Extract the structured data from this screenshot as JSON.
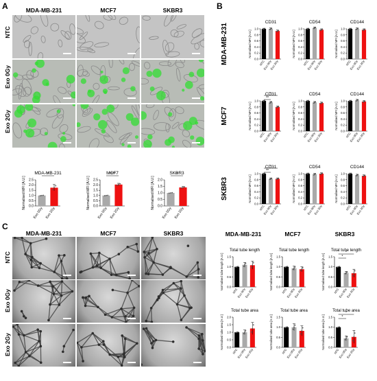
{
  "panels": {
    "a": "A",
    "b": "B",
    "c": "C"
  },
  "colors": {
    "ntc": "#000000",
    "exo0": "#a9a9a9",
    "exo2": "#ee1111",
    "green": "#33dd33"
  },
  "panelA": {
    "columns": [
      "MDA-MB-231",
      "MCF7",
      "SKBR3"
    ],
    "rows": [
      "NTC",
      "Exo 0Gy",
      "Exo 2Gy"
    ],
    "charts": [
      {
        "title": "MDA-MB-231",
        "ylabel": "Normalised MFI [A.U.]",
        "yticks": [
          "0.0",
          "0.5",
          "1.0",
          "1.5",
          "2.0",
          "2.5"
        ],
        "ymax": 2.5,
        "categories": [
          "Exo 0Gy",
          "Exo 2Gy"
        ],
        "values": [
          1.0,
          1.75
        ],
        "err": [
          0,
          0.3
        ],
        "sig": "*"
      },
      {
        "title": "MCF7",
        "ylabel": "Normalised MFI [A.U.]",
        "yticks": [
          "0.0",
          "0.5",
          "1.0",
          "1.5",
          "2.0",
          "2.5"
        ],
        "ymax": 2.5,
        "categories": [
          "Exo 0Gy",
          "Exo 2Gy"
        ],
        "values": [
          1.0,
          2.05
        ],
        "err": [
          0,
          0.12
        ],
        "sig": "****"
      },
      {
        "title": "SKBR3",
        "ylabel": "Normalised MFI [A.U.]",
        "yticks": [
          "0.0",
          "0.5",
          "1.0",
          "1.5",
          "2.0"
        ],
        "ymax": 2.0,
        "categories": [
          "Exo 0Gy",
          "Exo 2Gy"
        ],
        "values": [
          1.0,
          1.42
        ],
        "err": [
          0,
          0.07
        ],
        "sig": "**"
      }
    ]
  },
  "panelB": {
    "rows": [
      "MDA-MB-231",
      "MCF7",
      "SKBR3"
    ],
    "markers": [
      "CD31",
      "CD54",
      "CD144"
    ],
    "ylabel": "Normalised MFI [A.U.]",
    "yticks": [
      "0.0",
      "0.2",
      "0.4",
      "0.6",
      "0.8",
      "1.0"
    ],
    "categories": [
      "NTC",
      "Exo 0Gy",
      "Exo 2Gy"
    ],
    "values": [
      [
        [
          1.0,
          1.0,
          0.93
        ],
        [
          1.0,
          1.03,
          0.97
        ],
        [
          1.0,
          1.0,
          0.97
        ]
      ],
      [
        [
          1.0,
          0.95,
          0.8
        ],
        [
          1.0,
          0.95,
          0.93
        ],
        [
          1.0,
          1.02,
          0.98
        ]
      ],
      [
        [
          1.0,
          0.83,
          0.83
        ],
        [
          1.0,
          0.98,
          1.0
        ],
        [
          1.0,
          0.95,
          0.93
        ]
      ]
    ],
    "sig": [
      [
        [],
        [],
        []
      ],
      [
        [
          "**",
          "*"
        ],
        [],
        []
      ],
      [
        [
          "**",
          "*"
        ],
        [],
        []
      ]
    ]
  },
  "panelC": {
    "columns": [
      "MDA-MB-231",
      "MCF7",
      "SKBR3"
    ],
    "rows": [
      "NTC",
      "Exo 0Gy",
      "Exo 2Gy"
    ],
    "chartCols": [
      "MDA-MB-231",
      "MCF7",
      "SKBR3"
    ],
    "charts": [
      [
        {
          "title": "Total tube length",
          "ylabel": "Normalised tube length [A.U.]",
          "yticks": [
            "0.0",
            "0.5",
            "1.0",
            "1.5"
          ],
          "ymax": 1.5,
          "values": [
            1.0,
            1.1,
            1.08
          ],
          "err": [
            0,
            0.12,
            0.2
          ],
          "sig": []
        },
        {
          "title": "Total tube length",
          "ylabel": "Normalised tube length [A.U.]",
          "yticks": [
            "0.0",
            "0.5",
            "1.0",
            "1.5"
          ],
          "ymax": 1.5,
          "values": [
            1.0,
            0.93,
            0.88
          ],
          "err": [
            0,
            0.1,
            0.12
          ],
          "sig": []
        },
        {
          "title": "Total tube length",
          "ylabel": "Normalised tube length [A.U.]",
          "yticks": [
            "0.0",
            "0.5",
            "1.0",
            "1.5"
          ],
          "ymax": 1.5,
          "values": [
            1.0,
            0.7,
            0.68
          ],
          "err": [
            0,
            0.07,
            0.2
          ],
          "sig": [
            "*",
            "*"
          ]
        }
      ],
      [
        {
          "title": "Total tube area",
          "ylabel": "Normalised tube area [A.U.]",
          "yticks": [
            "0.0",
            "0.5",
            "1.0",
            "1.5",
            "2.0"
          ],
          "ymax": 2.0,
          "values": [
            1.0,
            1.0,
            1.25
          ],
          "err": [
            0,
            0.15,
            0.4
          ],
          "sig": []
        },
        {
          "title": "Total tube area",
          "ylabel": "Normalised tube area [A.U.]",
          "yticks": [
            "0.0",
            "0.5",
            "1.0",
            "1.5"
          ],
          "ymax": 1.5,
          "values": [
            1.0,
            1.0,
            0.82
          ],
          "err": [
            0,
            0.17,
            0.25
          ],
          "sig": []
        },
        {
          "title": "Total tube area",
          "ylabel": "Normalised tube area [A.U.]",
          "yticks": [
            "0.0",
            "0.5",
            "1.0",
            "1.5"
          ],
          "ymax": 1.5,
          "values": [
            1.0,
            0.45,
            0.52
          ],
          "err": [
            0,
            0.12,
            0.32
          ],
          "sig": [
            "*",
            "*"
          ]
        }
      ]
    ],
    "categories": [
      "NTC",
      "Exo 0Gy",
      "Exo 2Gy"
    ]
  },
  "chart_data": [
    {
      "type": "bar",
      "title": "MDA-MB-231",
      "ylabel": "Normalised MFI [A.U.]",
      "categories": [
        "Exo 0Gy",
        "Exo 2Gy"
      ],
      "values": [
        1.0,
        1.75
      ],
      "ylim": [
        0,
        2.5
      ]
    },
    {
      "type": "bar",
      "title": "MCF7",
      "ylabel": "Normalised MFI [A.U.]",
      "categories": [
        "Exo 0Gy",
        "Exo 2Gy"
      ],
      "values": [
        1.0,
        2.05
      ],
      "ylim": [
        0,
        2.5
      ]
    },
    {
      "type": "bar",
      "title": "SKBR3",
      "ylabel": "Normalised MFI [A.U.]",
      "categories": [
        "Exo 0Gy",
        "Exo 2Gy"
      ],
      "values": [
        1.0,
        1.42
      ],
      "ylim": [
        0,
        2.0
      ]
    }
  ]
}
